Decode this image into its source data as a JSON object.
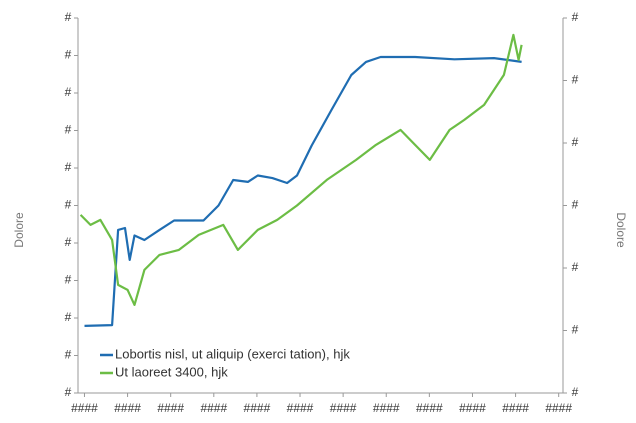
{
  "chart_data": {
    "type": "line",
    "y_label": "Dolore",
    "y2_label": "Dolore",
    "xlim": [
      -0.15,
      11.1
    ],
    "xticks": [
      {
        "value": 0,
        "label": "####"
      },
      {
        "value": 1,
        "label": "####"
      },
      {
        "value": 2,
        "label": "####"
      },
      {
        "value": 3,
        "label": "####"
      },
      {
        "value": 4,
        "label": "####"
      },
      {
        "value": 5,
        "label": "####"
      },
      {
        "value": 6,
        "label": "####"
      },
      {
        "value": 7,
        "label": "####"
      },
      {
        "value": 8,
        "label": "####"
      },
      {
        "value": 9,
        "label": "####"
      },
      {
        "value": 10,
        "label": "####"
      },
      {
        "value": 11,
        "label": "####"
      }
    ],
    "ylim": [
      0,
      10
    ],
    "yticks": [
      {
        "value": 0,
        "label": "#"
      },
      {
        "value": 1,
        "label": "#"
      },
      {
        "value": 2,
        "label": "#"
      },
      {
        "value": 3,
        "label": "#"
      },
      {
        "value": 4,
        "label": "#"
      },
      {
        "value": 5,
        "label": "#"
      },
      {
        "value": 6,
        "label": "#"
      },
      {
        "value": 7,
        "label": "#"
      },
      {
        "value": 8,
        "label": "#"
      },
      {
        "value": 9,
        "label": "#"
      },
      {
        "value": 10,
        "label": "#"
      }
    ],
    "y2lim": [
      0,
      6
    ],
    "y2ticks": [
      {
        "value": 0,
        "label": "#"
      },
      {
        "value": 1,
        "label": "#"
      },
      {
        "value": 2,
        "label": "#"
      },
      {
        "value": 3,
        "label": "#"
      },
      {
        "value": 4,
        "label": "#"
      },
      {
        "value": 5,
        "label": "#"
      },
      {
        "value": 6,
        "label": "#"
      }
    ],
    "series": [
      {
        "name": "Lobortis nisl, ut aliquip (exerci tation), hjk",
        "color": "#1f6db2",
        "axis": "y",
        "x": [
          0,
          0.64,
          0.78,
          0.94,
          1.05,
          1.16,
          1.39,
          1.74,
          2.08,
          2.76,
          3.11,
          3.45,
          3.79,
          4.02,
          4.36,
          4.7,
          4.93,
          5.27,
          5.73,
          6.19,
          6.53,
          6.87,
          7.67,
          8.58,
          9.5,
          10.14
        ],
        "values": [
          1.79,
          1.81,
          4.35,
          4.4,
          3.55,
          4.2,
          4.08,
          4.35,
          4.6,
          4.6,
          5.0,
          5.68,
          5.63,
          5.8,
          5.73,
          5.6,
          5.8,
          6.6,
          7.55,
          8.48,
          8.83,
          8.96,
          8.96,
          8.9,
          8.93,
          8.83
        ]
      },
      {
        "name": "Ut laoreet 3400, hjk",
        "color": "#6cbd45",
        "axis": "y2",
        "x": [
          -0.09,
          0.14,
          0.37,
          0.64,
          0.78,
          1.0,
          1.16,
          1.39,
          1.74,
          2.19,
          2.65,
          3.22,
          3.56,
          4.02,
          4.47,
          4.93,
          5.62,
          6.3,
          6.76,
          7.33,
          7.67,
          8.01,
          8.47,
          8.81,
          9.27,
          9.73,
          9.95,
          10.07,
          10.14
        ],
        "values": [
          2.85,
          2.69,
          2.77,
          2.45,
          1.73,
          1.65,
          1.41,
          1.97,
          2.21,
          2.29,
          2.53,
          2.69,
          2.29,
          2.61,
          2.77,
          3.0,
          3.41,
          3.73,
          3.97,
          4.21,
          3.97,
          3.73,
          4.21,
          4.37,
          4.61,
          5.09,
          5.73,
          5.33,
          5.57
        ]
      }
    ]
  }
}
